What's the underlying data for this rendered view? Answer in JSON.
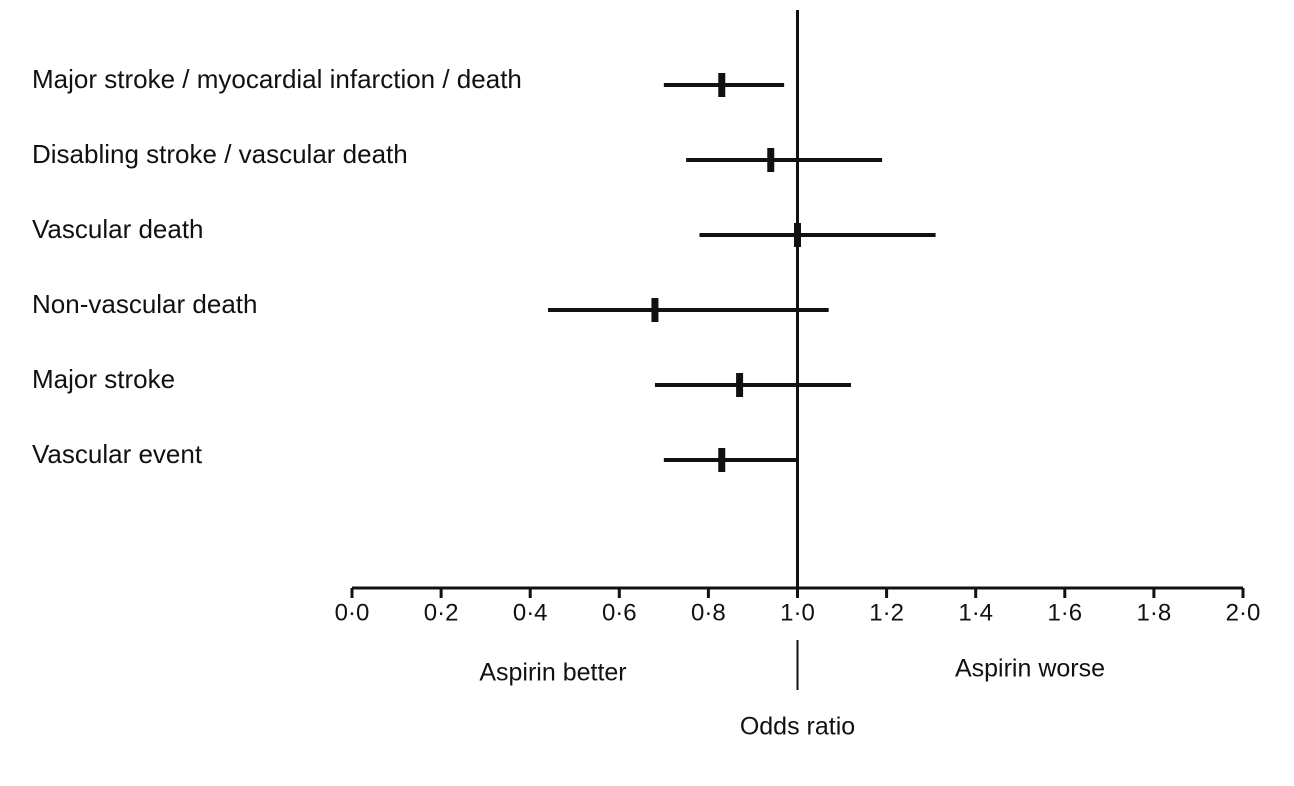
{
  "chart_data": {
    "type": "forest",
    "title": "",
    "xlabel": "Odds ratio",
    "ylabel": "",
    "xlim": [
      0,
      2
    ],
    "reference_line": 1.0,
    "x_ticks": [
      {
        "value": 0.0,
        "label": "0·0"
      },
      {
        "value": 0.2,
        "label": "0·2"
      },
      {
        "value": 0.4,
        "label": "0·4"
      },
      {
        "value": 0.6,
        "label": "0·6"
      },
      {
        "value": 0.8,
        "label": "0·8"
      },
      {
        "value": 1.0,
        "label": "1·0"
      },
      {
        "value": 1.2,
        "label": "1·2"
      },
      {
        "value": 1.4,
        "label": "1·4"
      },
      {
        "value": 1.6,
        "label": "1·6"
      },
      {
        "value": 1.8,
        "label": "1·8"
      },
      {
        "value": 2.0,
        "label": "2·0"
      }
    ],
    "direction_labels": {
      "left": "Aspirin better",
      "right": "Aspirin worse"
    },
    "rows": [
      {
        "label": "Major stroke / myocardial infarction / death",
        "estimate": 0.83,
        "ci_low": 0.7,
        "ci_high": 0.97
      },
      {
        "label": "Disabling stroke / vascular death",
        "estimate": 0.94,
        "ci_low": 0.75,
        "ci_high": 1.19
      },
      {
        "label": "Vascular death",
        "estimate": 1.0,
        "ci_low": 0.78,
        "ci_high": 1.31
      },
      {
        "label": "Non-vascular death",
        "estimate": 0.68,
        "ci_low": 0.44,
        "ci_high": 1.07
      },
      {
        "label": "Major stroke",
        "estimate": 0.87,
        "ci_low": 0.68,
        "ci_high": 1.12
      },
      {
        "label": "Vascular event",
        "estimate": 0.83,
        "ci_low": 0.7,
        "ci_high": 1.0
      }
    ],
    "grid": false,
    "legend": "none",
    "colors": {
      "ink": "#111111",
      "background": "#ffffff"
    }
  }
}
